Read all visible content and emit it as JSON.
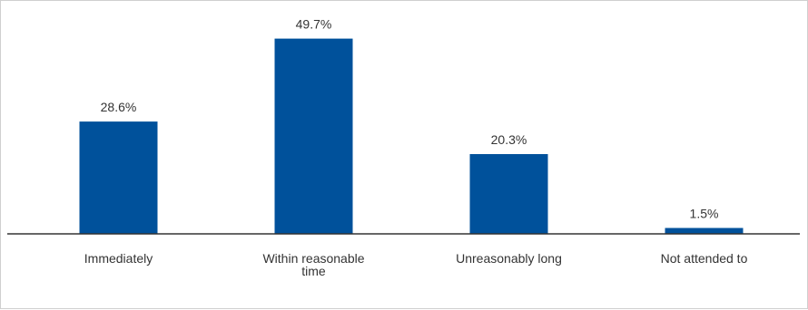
{
  "chart_data": {
    "type": "bar",
    "categories": [
      [
        "Immediately"
      ],
      [
        "Within reasonable",
        "time"
      ],
      [
        "Unreasonably long"
      ],
      [
        "Not attended to"
      ]
    ],
    "values": [
      28.6,
      49.7,
      20.3,
      1.5
    ],
    "value_labels": [
      "28.6%",
      "49.7%",
      "20.3%",
      "1.5%"
    ],
    "unit": "%",
    "ylim": [
      0,
      57
    ],
    "grid": false,
    "legend": "none",
    "bar_color": "#00519B",
    "axis_color": "#333333"
  }
}
